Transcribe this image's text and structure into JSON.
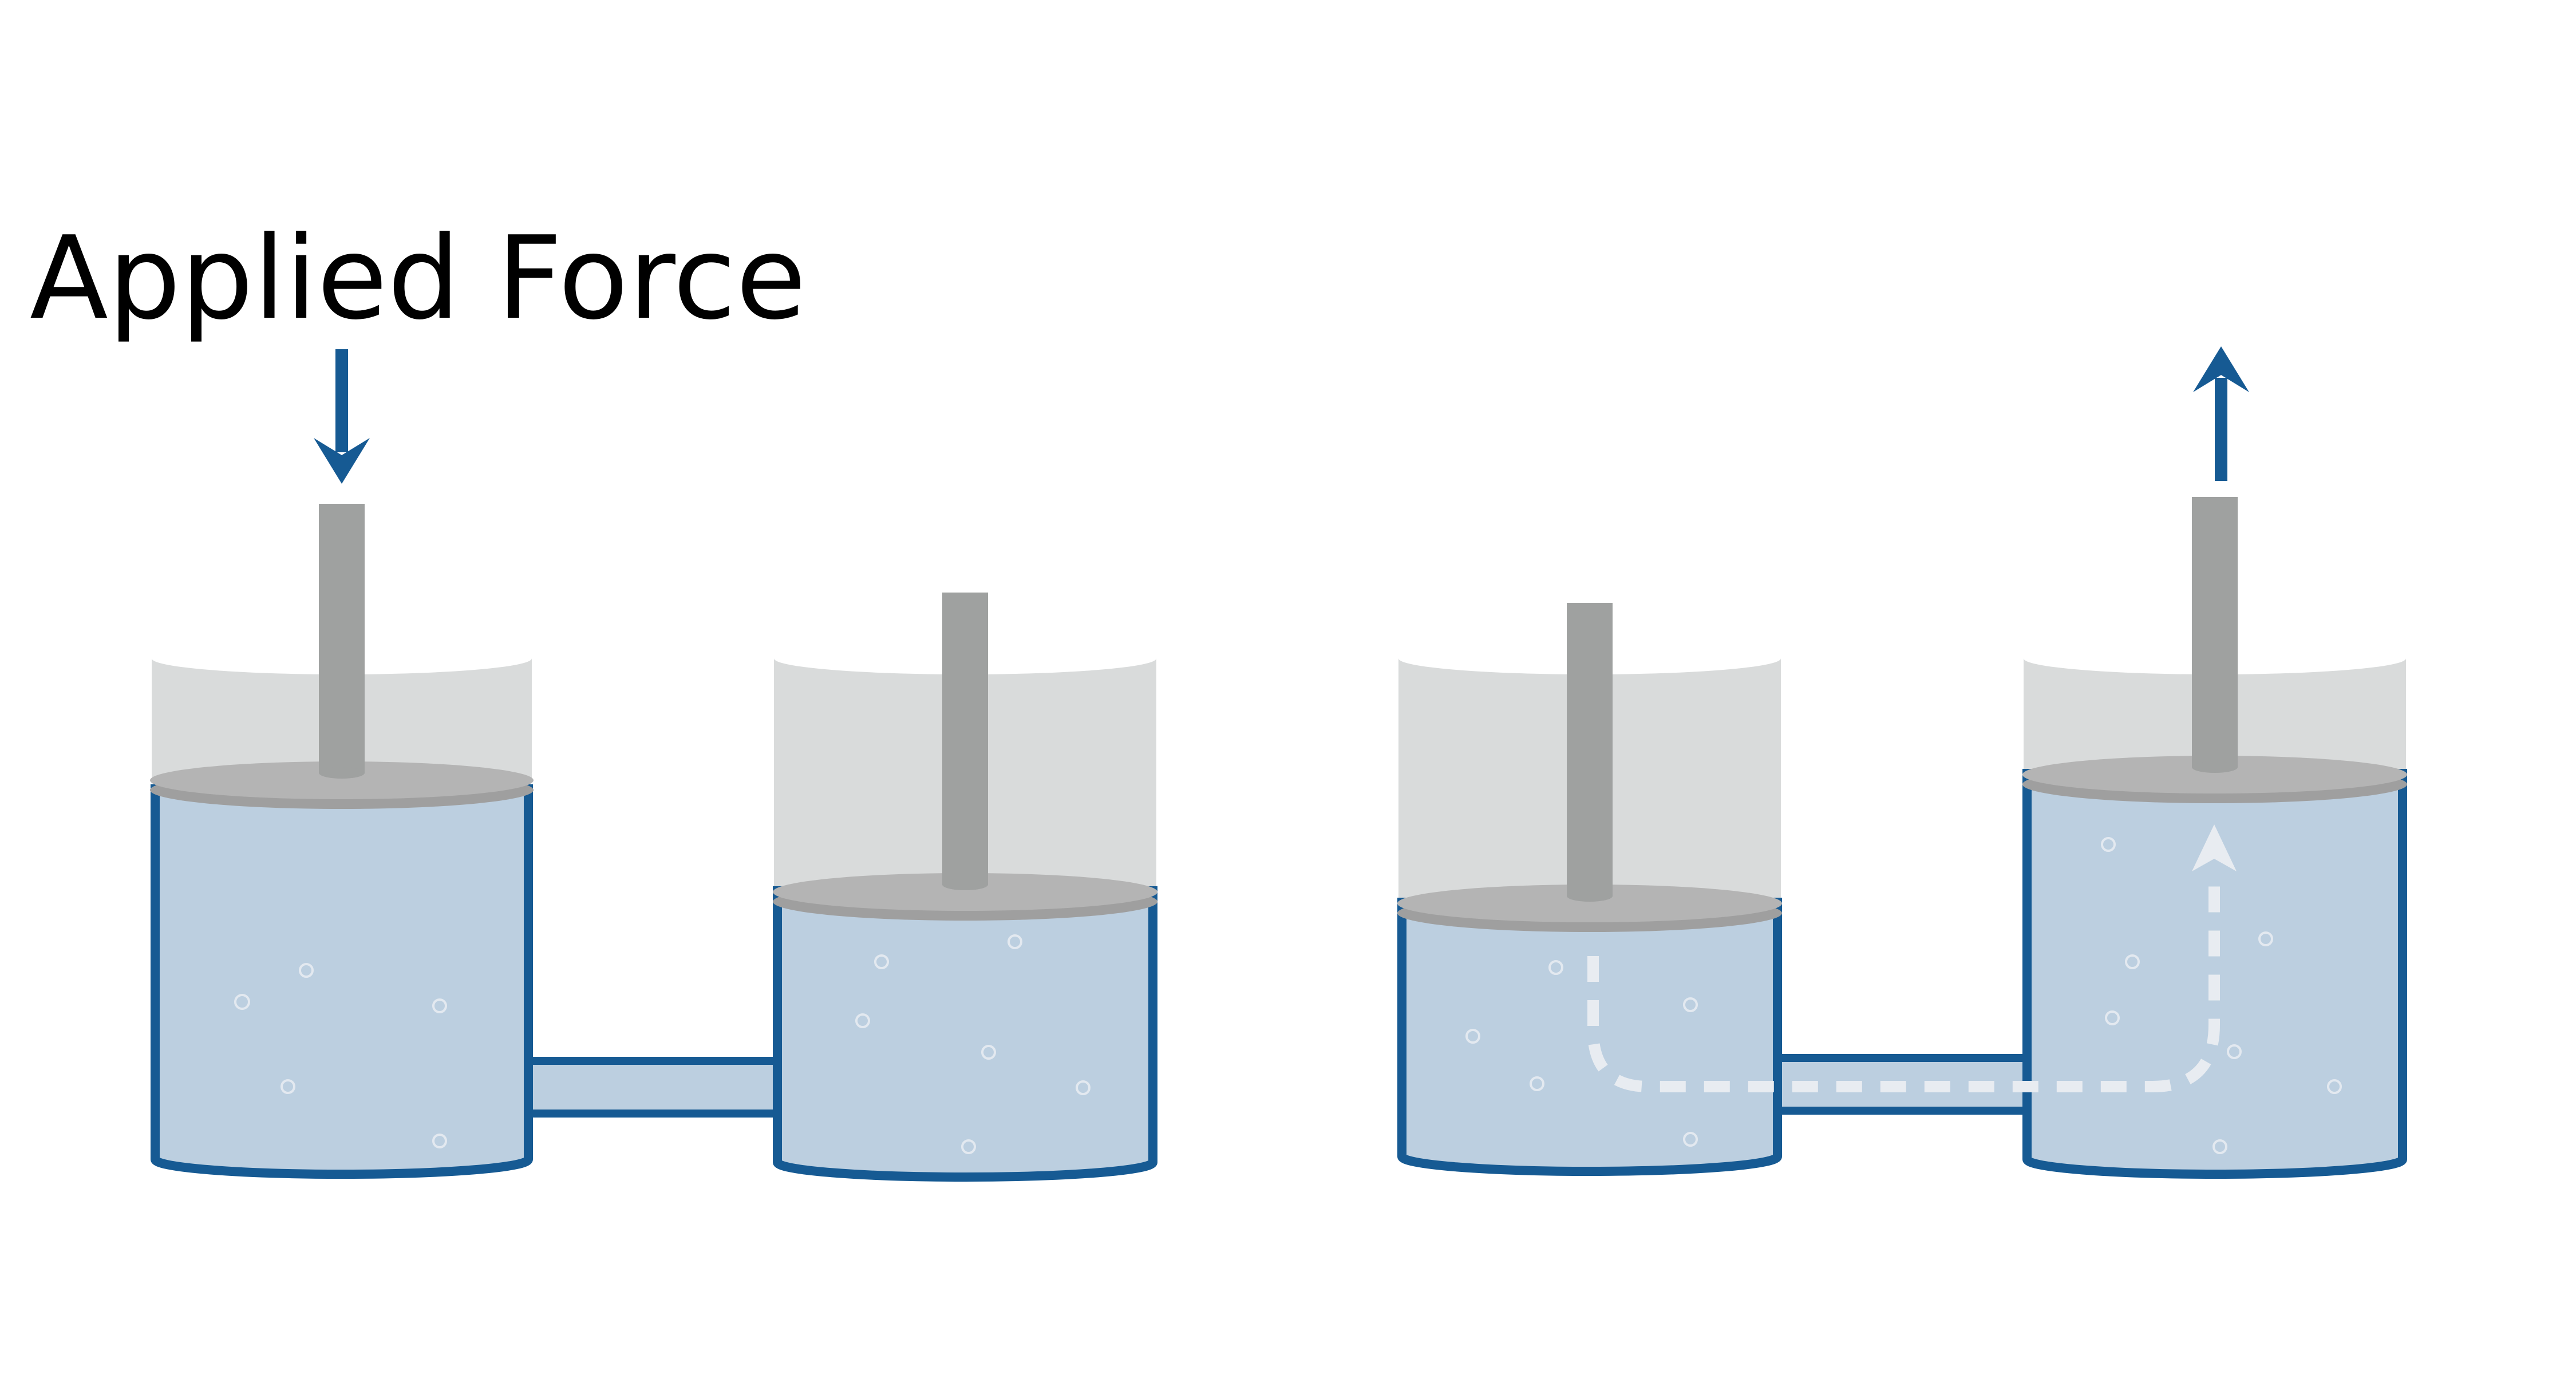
{
  "diagram": {
    "label": "Applied Force",
    "colors": {
      "wall": "#165a93",
      "fluid": "#bccfe0",
      "glass": "#d9dbdb",
      "piston": "#b4b4b4",
      "piston_edge": "#9f9f9f",
      "rod": "#9fa1a0",
      "flow": "#e8ecf1",
      "arrow": "#165a93"
    },
    "icons": {
      "force_in": "down-arrow-icon",
      "force_out": "up-arrow-icon",
      "flow": "dashed-flow-arrow-icon"
    }
  }
}
